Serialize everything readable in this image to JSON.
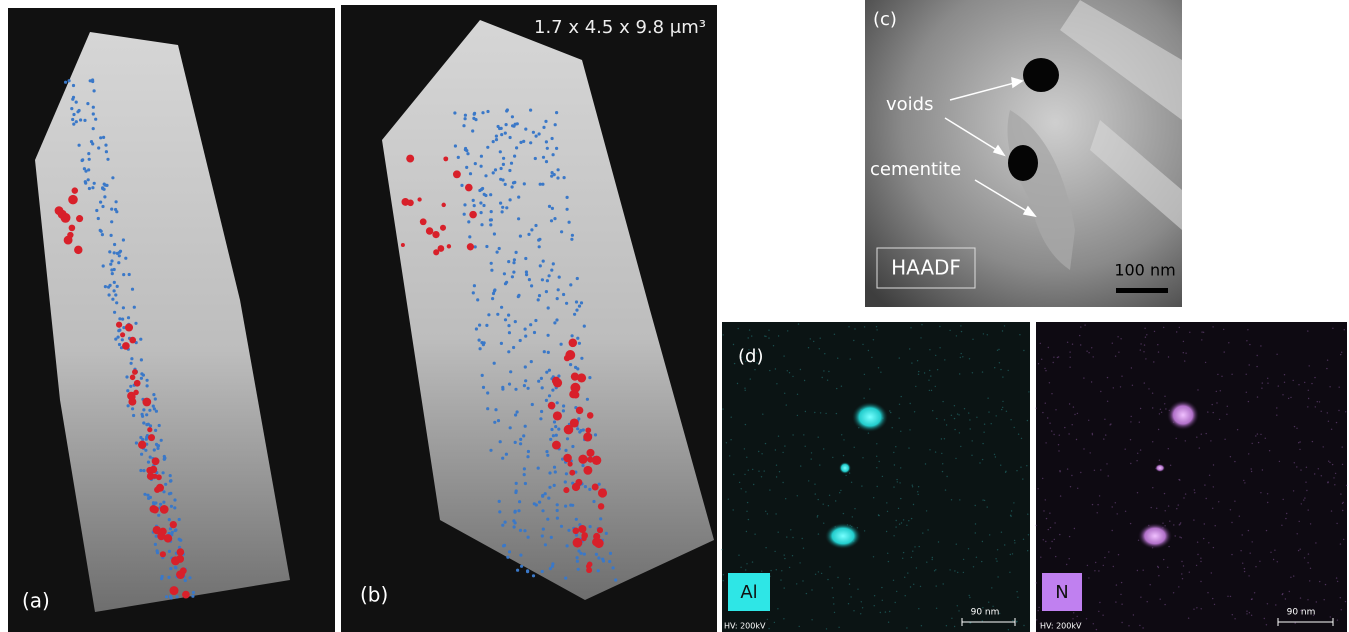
{
  "panels": {
    "a": {
      "label": "(a)"
    },
    "b": {
      "label": "(b)",
      "volume": "1.7 x 4.5 x 9.8 μm³"
    },
    "c": {
      "label": "(c)",
      "annotations": [
        "voids",
        "cementite"
      ],
      "mode": "HAADF",
      "scale": "100 nm"
    },
    "d": {
      "label": "(d)",
      "maps": [
        {
          "element": "Al",
          "scale": "90 nm",
          "voltage": "HV: 200kV"
        },
        {
          "element": "N",
          "scale": "90 nm",
          "voltage": "HV: 200kV"
        }
      ]
    }
  }
}
